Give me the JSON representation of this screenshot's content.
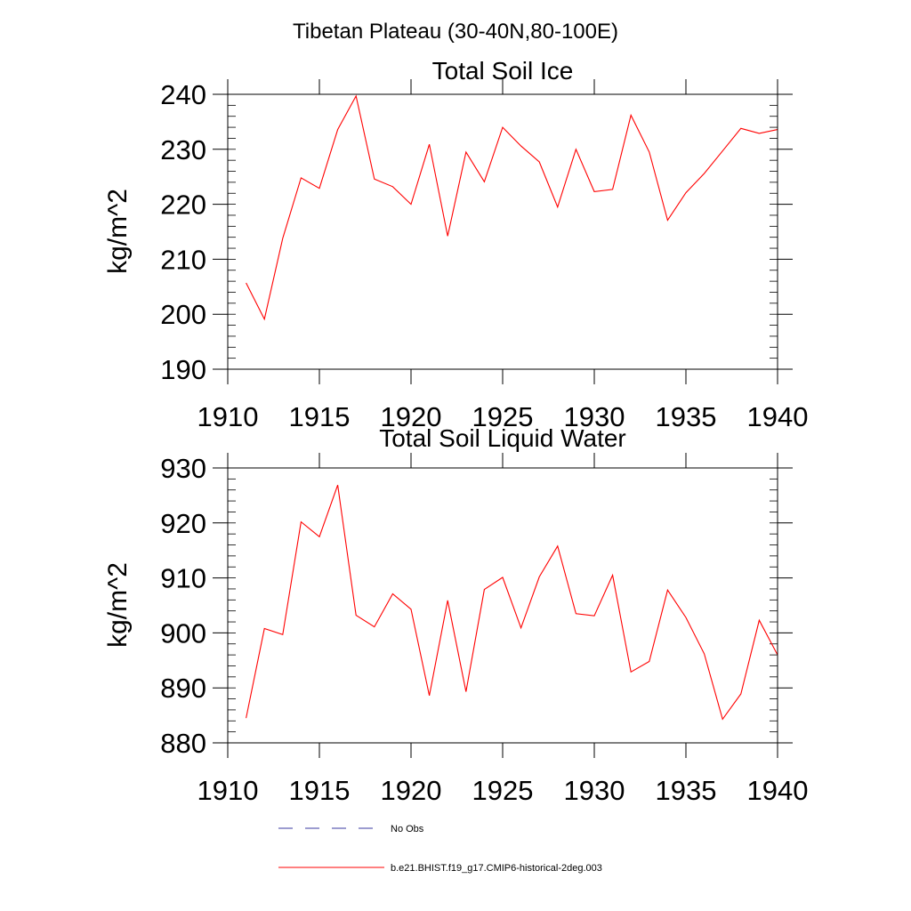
{
  "page_title": "Tibetan Plateau (30-40N,80-100E)",
  "colors": {
    "series": "#ff0000",
    "obs": "#3a3aa0",
    "axis": "#000000"
  },
  "chart_data": [
    {
      "type": "line",
      "title": "Total Soil Ice",
      "xlabel": "",
      "ylabel": "kg/m^2",
      "xlim": [
        1910,
        1940
      ],
      "ylim": [
        190,
        240
      ],
      "xticks": [
        1910,
        1915,
        1920,
        1925,
        1930,
        1935,
        1940
      ],
      "yticks": [
        190,
        200,
        210,
        220,
        230,
        240
      ],
      "series": [
        {
          "name": "b.e21.BHIST.f19_g17.CMIP6-historical-2deg.003",
          "x": [
            1911,
            1912,
            1913,
            1914,
            1915,
            1916,
            1917,
            1918,
            1919,
            1920,
            1921,
            1922,
            1923,
            1924,
            1925,
            1926,
            1927,
            1928,
            1929,
            1930,
            1931,
            1932,
            1933,
            1934,
            1935,
            1936,
            1937,
            1938,
            1939,
            1940
          ],
          "values": [
            205.7,
            199.1,
            213.8,
            224.8,
            222.9,
            233.6,
            239.7,
            224.6,
            223.2,
            220.0,
            230.9,
            214.2,
            229.5,
            224.1,
            234.0,
            230.6,
            227.7,
            219.5,
            230.0,
            222.3,
            222.7,
            236.2,
            229.5,
            217.1,
            222.1,
            225.6,
            229.7,
            233.8,
            232.9,
            233.6
          ]
        }
      ],
      "grid": false
    },
    {
      "type": "line",
      "title": "Total Soil Liquid Water",
      "xlabel": "",
      "ylabel": "kg/m^2",
      "xlim": [
        1910,
        1940
      ],
      "ylim": [
        880,
        930
      ],
      "xticks": [
        1910,
        1915,
        1920,
        1925,
        1930,
        1935,
        1940
      ],
      "yticks": [
        880,
        890,
        900,
        910,
        920,
        930
      ],
      "series": [
        {
          "name": "b.e21.BHIST.f19_g17.CMIP6-historical-2deg.003",
          "x": [
            1911,
            1912,
            1913,
            1914,
            1915,
            1916,
            1917,
            1918,
            1919,
            1920,
            1921,
            1922,
            1923,
            1924,
            1925,
            1926,
            1927,
            1928,
            1929,
            1930,
            1931,
            1932,
            1933,
            1934,
            1935,
            1936,
            1937,
            1938,
            1939,
            1940
          ],
          "values": [
            884.5,
            900.8,
            899.7,
            920.2,
            917.5,
            926.9,
            903.2,
            901.1,
            907.1,
            904.3,
            888.6,
            905.9,
            889.3,
            907.9,
            910.1,
            900.9,
            910.2,
            915.8,
            903.5,
            903.1,
            910.5,
            892.9,
            894.8,
            907.8,
            902.8,
            896.2,
            884.3,
            888.9,
            902.3,
            896.0
          ]
        }
      ],
      "grid": false
    }
  ],
  "legend": [
    {
      "label": "No Obs",
      "style": "dashed",
      "color": "#3a3aa0"
    },
    {
      "label": "b.e21.BHIST.f19_g17.CMIP6-historical-2deg.003",
      "style": "solid",
      "color": "#ff0000"
    }
  ]
}
